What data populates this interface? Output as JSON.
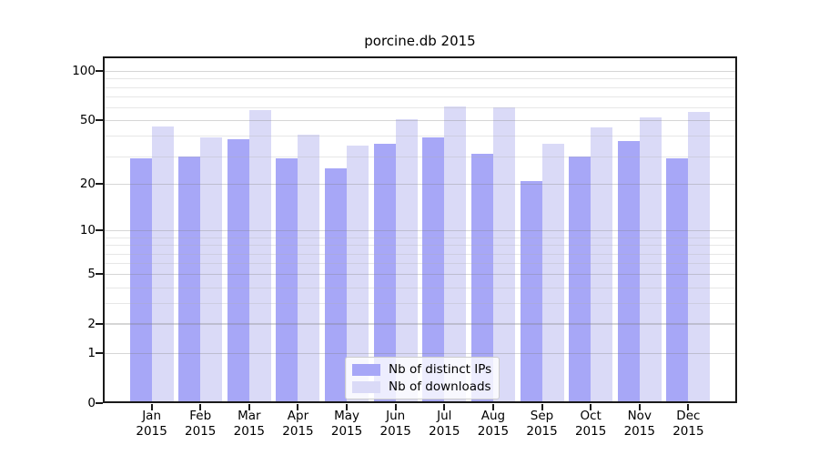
{
  "chart_data": {
    "type": "bar",
    "title": "porcine.db 2015",
    "scale": "log1p",
    "year": "2015",
    "categories": [
      "Jan",
      "Feb",
      "Mar",
      "Apr",
      "May",
      "Jun",
      "Jul",
      "Aug",
      "Sep",
      "Oct",
      "Nov",
      "Dec"
    ],
    "series": [
      {
        "name": "Nb of distinct IPs",
        "color": "#a7a7f7",
        "values": [
          29,
          30,
          38,
          29,
          25,
          36,
          39,
          31,
          21,
          30,
          37,
          29
        ]
      },
      {
        "name": "Nb of downloads",
        "color": "#dadaf7",
        "values": [
          46,
          39,
          58,
          41,
          35,
          51,
          61,
          60,
          36,
          45,
          52,
          56
        ]
      }
    ],
    "y_major_ticks": [
      100,
      50,
      20,
      10,
      5,
      2,
      1,
      0
    ],
    "y_minor_gridlines": [
      90,
      80,
      70,
      60,
      40,
      30,
      9,
      8,
      7,
      6,
      4,
      3
    ],
    "ylim": [
      0,
      120
    ],
    "xlabel": "",
    "ylabel": "",
    "grid": true,
    "legend_position": "lower center"
  },
  "colors": {
    "background": "#ffffff",
    "axes_edge": "#1a1a1a",
    "text": "#000000"
  }
}
